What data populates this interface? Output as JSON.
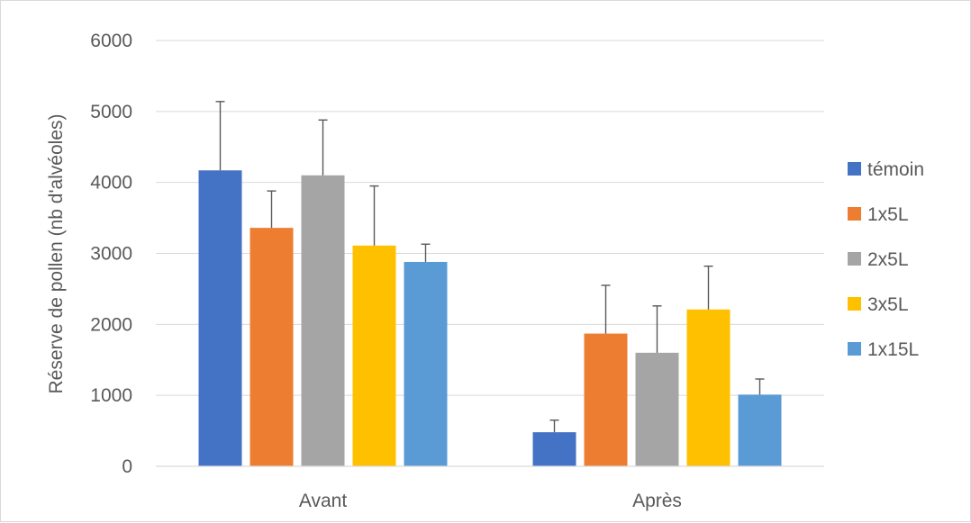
{
  "chart_data": {
    "type": "bar",
    "title": "",
    "xlabel": "",
    "ylabel": "Réserve de pollen (nb d'alvéoles)",
    "categories": [
      "Avant",
      "Après"
    ],
    "ylim": [
      0,
      6000
    ],
    "yticks": [
      0,
      1000,
      2000,
      3000,
      4000,
      5000,
      6000
    ],
    "ytick_labels": [
      "0",
      "1000",
      "2000",
      "3000",
      "4000",
      "5000",
      "6000"
    ],
    "grid": true,
    "legend_position": "right",
    "series": [
      {
        "name": "témoin",
        "color": "#4472C4",
        "values": [
          4170,
          480
        ],
        "error": [
          970,
          170
        ]
      },
      {
        "name": "1x5L",
        "color": "#ED7D31",
        "values": [
          3360,
          1870
        ],
        "error": [
          520,
          680
        ]
      },
      {
        "name": "2x5L",
        "color": "#A5A5A5",
        "values": [
          4100,
          1600
        ],
        "error": [
          780,
          660
        ]
      },
      {
        "name": "3x5L",
        "color": "#FFC000",
        "values": [
          3110,
          2210
        ],
        "error": [
          840,
          610
        ]
      },
      {
        "name": "1x15L",
        "color": "#5B9BD5",
        "values": [
          2880,
          1010
        ],
        "error": [
          250,
          220
        ]
      }
    ]
  }
}
